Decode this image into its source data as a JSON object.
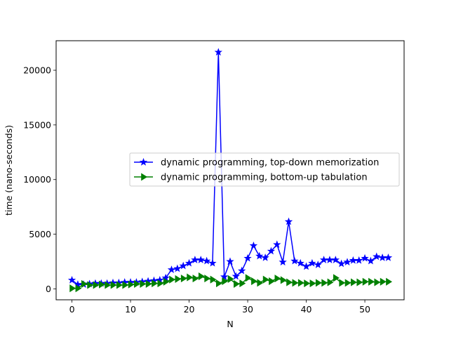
{
  "chart_data": {
    "type": "line",
    "title": "",
    "xlabel": "N",
    "ylabel": "time (nano-seconds)",
    "xlim": [
      -2.7,
      56.7
    ],
    "ylim": [
      -1000,
      22700
    ],
    "xticks": [
      0,
      10,
      20,
      30,
      40,
      50
    ],
    "yticks": [
      0,
      5000,
      10000,
      15000,
      20000
    ],
    "grid": false,
    "legend_position": "center-right",
    "series": [
      {
        "name": "dynamic programming, top-down memorization",
        "color": "#0000ff",
        "marker": "star",
        "x": [
          0,
          1,
          2,
          3,
          4,
          5,
          6,
          7,
          8,
          9,
          10,
          11,
          12,
          13,
          14,
          15,
          16,
          17,
          18,
          19,
          20,
          21,
          22,
          23,
          24,
          25,
          26,
          27,
          28,
          29,
          30,
          31,
          32,
          33,
          34,
          35,
          36,
          37,
          38,
          39,
          40,
          41,
          42,
          43,
          44,
          45,
          46,
          47,
          48,
          49,
          50,
          51,
          52,
          53,
          54
        ],
        "values": [
          800,
          400,
          400,
          450,
          500,
          500,
          500,
          550,
          550,
          600,
          600,
          600,
          650,
          700,
          750,
          800,
          1000,
          1750,
          1850,
          2100,
          2350,
          2650,
          2650,
          2550,
          2350,
          21650,
          1100,
          2500,
          1150,
          1650,
          2800,
          3950,
          3000,
          2850,
          3450,
          4050,
          2450,
          6150,
          2550,
          2350,
          2050,
          2350,
          2200,
          2650,
          2650,
          2650,
          2300,
          2450,
          2600,
          2600,
          2800,
          2550,
          2950,
          2850,
          2850
        ]
      },
      {
        "name": "dynamic programming, bottom-up tabulation",
        "color": "#008000",
        "marker": "triangle-right",
        "x": [
          0,
          1,
          2,
          3,
          4,
          5,
          6,
          7,
          8,
          9,
          10,
          11,
          12,
          13,
          14,
          15,
          16,
          17,
          18,
          19,
          20,
          21,
          22,
          23,
          24,
          25,
          26,
          27,
          28,
          29,
          30,
          31,
          32,
          33,
          34,
          35,
          36,
          37,
          38,
          39,
          40,
          41,
          42,
          43,
          44,
          45,
          46,
          47,
          48,
          49,
          50,
          51,
          52,
          53,
          54
        ],
        "values": [
          50,
          50,
          450,
          350,
          350,
          400,
          350,
          350,
          350,
          350,
          400,
          450,
          450,
          450,
          500,
          500,
          650,
          850,
          900,
          950,
          1050,
          950,
          1150,
          950,
          850,
          500,
          700,
          900,
          450,
          500,
          1000,
          700,
          550,
          850,
          700,
          950,
          800,
          600,
          550,
          550,
          500,
          500,
          550,
          550,
          600,
          1000,
          550,
          550,
          600,
          600,
          650,
          650,
          600,
          650,
          650
        ]
      }
    ]
  }
}
